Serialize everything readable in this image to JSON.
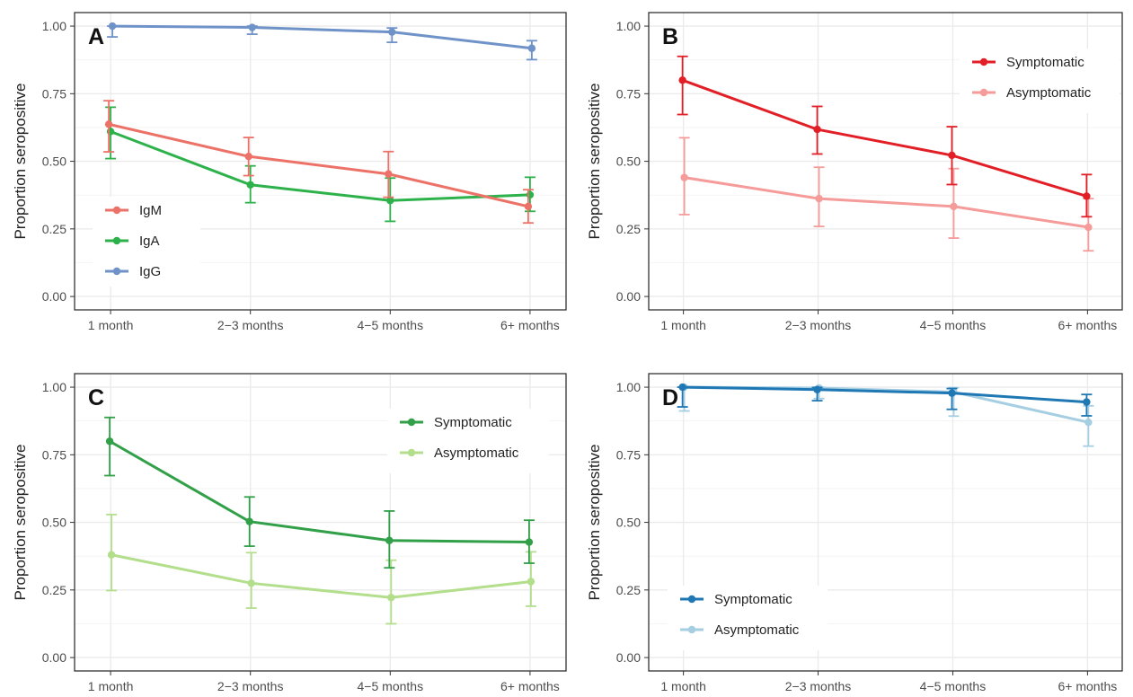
{
  "chart_data": [
    {
      "type": "line",
      "panel_label": "A",
      "ylabel": "Proportion seropositive",
      "categories": [
        "1 month",
        "2−3 months",
        "4−5 months",
        "6+ months"
      ],
      "ylim": [
        0,
        1.05
      ],
      "yticks": [
        "0.00",
        "0.25",
        "0.50",
        "0.75",
        "1.00"
      ],
      "grid": true,
      "legend_position": "bottom-left",
      "series": [
        {
          "name": "IgM",
          "color": "#EC7268",
          "values": [
            0.637,
            0.518,
            0.453,
            0.333
          ],
          "lower": [
            0.535,
            0.447,
            0.367,
            0.272
          ],
          "upper": [
            0.724,
            0.588,
            0.536,
            0.395
          ]
        },
        {
          "name": "IgA",
          "color": "#2DB24B",
          "values": [
            0.61,
            0.413,
            0.355,
            0.376
          ],
          "lower": [
            0.51,
            0.347,
            0.278,
            0.315
          ],
          "upper": [
            0.7,
            0.483,
            0.438,
            0.441
          ]
        },
        {
          "name": "IgG",
          "color": "#6F93C8",
          "values": [
            1.0,
            0.995,
            0.978,
            0.918
          ],
          "lower": [
            0.96,
            0.97,
            0.94,
            0.876
          ],
          "upper": [
            1.0,
            1.0,
            0.993,
            0.946
          ]
        }
      ]
    },
    {
      "type": "line",
      "panel_label": "B",
      "ylabel": "Proportion seropositive",
      "categories": [
        "1 month",
        "2−3 months",
        "4−5 months",
        "6+ months"
      ],
      "ylim": [
        0,
        1.05
      ],
      "yticks": [
        "0.00",
        "0.25",
        "0.50",
        "0.75",
        "1.00"
      ],
      "grid": true,
      "legend_position": "top-right",
      "series": [
        {
          "name": "Symptomatic",
          "color": "#E21F26",
          "values": [
            0.8,
            0.618,
            0.522,
            0.371
          ],
          "lower": [
            0.673,
            0.527,
            0.414,
            0.295
          ],
          "upper": [
            0.888,
            0.703,
            0.628,
            0.451
          ]
        },
        {
          "name": "Asymptomatic",
          "color": "#F59B9A",
          "values": [
            0.44,
            0.362,
            0.333,
            0.256
          ],
          "lower": [
            0.303,
            0.259,
            0.216,
            0.169
          ],
          "upper": [
            0.587,
            0.478,
            0.473,
            0.362
          ]
        }
      ]
    },
    {
      "type": "line",
      "panel_label": "C",
      "ylabel": "Proportion seropositive",
      "categories": [
        "1 month",
        "2−3 months",
        "4−5 months",
        "6+ months"
      ],
      "ylim": [
        0,
        1.05
      ],
      "yticks": [
        "0.00",
        "0.25",
        "0.50",
        "0.75",
        "1.00"
      ],
      "grid": true,
      "legend_position": "top-right",
      "series": [
        {
          "name": "Symptomatic",
          "color": "#31A048",
          "values": [
            0.8,
            0.503,
            0.433,
            0.427
          ],
          "lower": [
            0.673,
            0.412,
            0.332,
            0.349
          ],
          "upper": [
            0.888,
            0.594,
            0.542,
            0.508
          ]
        },
        {
          "name": "Asymptomatic",
          "color": "#B3DE8B",
          "values": [
            0.38,
            0.275,
            0.222,
            0.281
          ],
          "lower": [
            0.248,
            0.183,
            0.125,
            0.19
          ],
          "upper": [
            0.529,
            0.388,
            0.36,
            0.391
          ]
        }
      ]
    },
    {
      "type": "line",
      "panel_label": "D",
      "ylabel": "Proportion seropositive",
      "categories": [
        "1 month",
        "2−3 months",
        "4−5 months",
        "6+ months"
      ],
      "ylim": [
        0,
        1.05
      ],
      "yticks": [
        "0.00",
        "0.25",
        "0.50",
        "0.75",
        "1.00"
      ],
      "grid": true,
      "legend_position": "bottom-left",
      "series": [
        {
          "name": "Symptomatic",
          "color": "#1F78B4",
          "values": [
            1.0,
            0.991,
            0.978,
            0.945
          ],
          "lower": [
            0.927,
            0.95,
            0.918,
            0.894
          ],
          "upper": [
            1.0,
            0.999,
            0.995,
            0.973
          ]
        },
        {
          "name": "Asymptomatic",
          "color": "#A6CEE3",
          "values": [
            1.0,
            0.997,
            0.982,
            0.87
          ],
          "lower": [
            0.912,
            0.958,
            0.893,
            0.782
          ],
          "upper": [
            1.0,
            1.0,
            0.998,
            0.931
          ]
        }
      ]
    }
  ]
}
